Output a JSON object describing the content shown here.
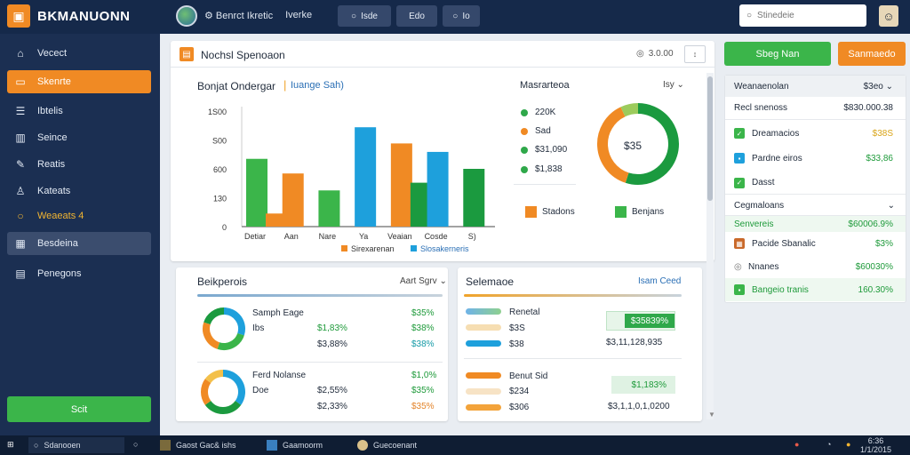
{
  "app": {
    "title": "BKMANUONN"
  },
  "topbar": {
    "links": [
      "Benrct Ikretic",
      "Iverke"
    ],
    "buttons": [
      {
        "label": "Isde",
        "icon": "search-icon"
      },
      {
        "label": "Edo",
        "icon": "grid-icon"
      },
      {
        "label": "Io",
        "icon": "chat-icon"
      }
    ],
    "search": {
      "placeholder": "Stinedeie"
    }
  },
  "sidebar": {
    "items": [
      {
        "label": "Vecect",
        "icon": "home-icon"
      },
      {
        "label": "Skenrte",
        "icon": "folder-icon"
      },
      {
        "label": "Ibtelis",
        "icon": "list-icon"
      },
      {
        "label": "Seince",
        "icon": "chart-icon"
      },
      {
        "label": "Reatis",
        "icon": "edit-icon"
      },
      {
        "label": "Kateats",
        "icon": "user-icon"
      },
      {
        "label": "Weaeats 4",
        "icon": "circle-icon"
      },
      {
        "label": "Besdeina",
        "icon": "settings-icon"
      },
      {
        "label": "Penegons",
        "icon": "doc-icon"
      }
    ],
    "start_label": "Scit"
  },
  "main": {
    "title": "Nochsl Spenoaon",
    "meta": "3.0.00",
    "chart_title": "Bonjat Ondergar",
    "chart_sub": "Iuange Sah)",
    "donut_title": "Masrarteoa",
    "donut_center": "$35",
    "donut_menu": "Isy",
    "donut_legend": [
      {
        "label": "220K",
        "color": "#2fa84a"
      },
      {
        "label": "Sad",
        "color": "#f08a24"
      },
      {
        "label": "$31,090",
        "color": "#2fa84a"
      },
      {
        "label": "$1,838",
        "color": "#2fa84a"
      }
    ],
    "donut_legend2": [
      {
        "label": "Stadons",
        "color": "#f08a24"
      },
      {
        "label": "Benjans",
        "color": "#3bb54a"
      }
    ]
  },
  "chart_data": {
    "type": "bar",
    "title": "Bonjat Ondergar",
    "categories": [
      "Detiar",
      "Aan",
      "Nare",
      "Ya",
      "Veaian",
      "Cosde",
      "S)"
    ],
    "y_tick_labels": [
      "1S00",
      "S00",
      "600",
      "130",
      "0"
    ],
    "series": [
      {
        "name": "Sirexarenan",
        "values": [
          880,
          140,
          690,
          440,
          1260,
          1100,
          860
        ],
        "color_key": "mixed"
      }
    ],
    "bars": [
      {
        "category": "Detiar",
        "values": [
          {
            "v": 880,
            "color": "#3bb54a"
          },
          {
            "v": 170,
            "color": "#f08a24"
          }
        ]
      },
      {
        "category": "Aan",
        "values": [
          {
            "v": 690,
            "color": "#f08a24"
          }
        ]
      },
      {
        "category": "Nare",
        "values": [
          {
            "v": 470,
            "color": "#3bb54a"
          }
        ]
      },
      {
        "category": "Ya",
        "values": [
          {
            "v": 1290,
            "color": "#1ea0dc"
          }
        ]
      },
      {
        "category": "Veaian",
        "values": [
          {
            "v": 1080,
            "color": "#f08a24"
          },
          {
            "v": 570,
            "color": "#1b9a3f"
          }
        ]
      },
      {
        "category": "Cosde",
        "values": [
          {
            "v": 970,
            "color": "#1ea0dc"
          }
        ]
      },
      {
        "category": "S)",
        "values": [
          {
            "v": 750,
            "color": "#1b9a3f"
          }
        ]
      }
    ],
    "ylim": [
      0,
      1500
    ],
    "legend": [
      {
        "label": "Sirexarenan",
        "color": "#f08a24"
      },
      {
        "label": "Slosakerneris",
        "color": "#1ea0dc"
      }
    ]
  },
  "donut_data": {
    "segments": [
      0.55,
      0.38,
      0.07
    ],
    "colors": [
      "#1b9a3f",
      "#f08a24",
      "#9ccb5c"
    ]
  },
  "bottom_left": {
    "title": "Beikperois",
    "link": "Aart Sgrv",
    "groups": [
      {
        "label": "Samph Eage",
        "sub": "Ibs",
        "col1": [
          "$1,83%",
          "$3,88%"
        ],
        "col2": [
          "$35%",
          "$38%",
          "$38%"
        ]
      },
      {
        "label": "Ferd Nolanse",
        "sub": "Doe",
        "col1": [
          "$2,55%",
          "$2,33%"
        ],
        "col2": [
          "$1,0%",
          "$35%",
          "$35%"
        ]
      }
    ]
  },
  "bottom_right": {
    "title": "Selemaoe",
    "link": "Isam Ceed",
    "rows": [
      {
        "label": "Renetal",
        "color": "#6fb3e8"
      },
      {
        "label": "$3S",
        "color": "#f1c27d"
      },
      {
        "label": "$38",
        "color": "#1ea0dc"
      },
      {
        "label": "Benut Sid",
        "color": "#f08a24"
      },
      {
        "label": "$234",
        "color": "#f7e3c5"
      },
      {
        "label": "$306",
        "color": "#f3a33a"
      }
    ],
    "box1": "$35839%",
    "box1_sub": "$3,11,128,935",
    "box2": "$1,183%",
    "box2_sub": "$3,1,1,0,1,0200"
  },
  "right_panel": {
    "btn_green": "Sbeg Nan",
    "btn_orange": "Sanmaedo",
    "header": "Weanaenolan",
    "header_val": "$3eo",
    "rows": [
      {
        "label": "Recl snenoss",
        "value": "$830.000.38",
        "icon": ""
      },
      {
        "label": "Dreamacios",
        "value": "$38S",
        "icon": "green-square-icon"
      },
      {
        "label": "Pardne eiros",
        "value": "$33,86",
        "icon": "blue-square-icon"
      },
      {
        "label": "Dasst",
        "value": "",
        "icon": "green-square-icon"
      },
      {
        "label": "Cegmaloans",
        "value": "",
        "icon": ""
      },
      {
        "label": "Senvereis",
        "value": "$60006.9%",
        "icon": ""
      },
      {
        "label": "Pacide Sbanalic",
        "value": "$3%",
        "icon": "orange-square-icon"
      },
      {
        "label": "Nnanes",
        "value": "$60030%",
        "icon": "circle-icon"
      },
      {
        "label": "Bangeio tranis",
        "value": "160.30%",
        "icon": "green-square-icon"
      }
    ]
  },
  "taskbar": {
    "items": [
      "Sdanooen",
      "Gaost Gac& ishs",
      "Gaamoorm",
      "Guecoenant"
    ],
    "time": "6:36",
    "date": "1/1/2015"
  },
  "colors": {
    "accent_orange": "#f08a24",
    "accent_green": "#3bb54a",
    "navy": "#1b2f52",
    "blue": "#1ea0dc"
  }
}
